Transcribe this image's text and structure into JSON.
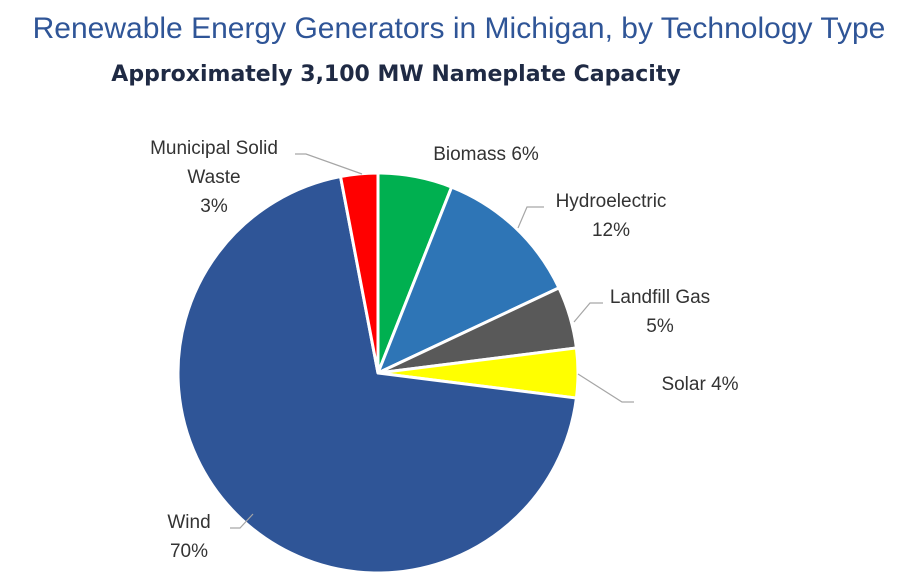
{
  "chart_data": {
    "type": "pie",
    "title": "Renewable Energy Generators in Michigan, by Technology Type",
    "subtitle": "Approximately 3,100 MW Nameplate Capacity",
    "slices": [
      {
        "name": "Biomass",
        "value": 6,
        "label": "Biomass 6%",
        "color": "#00b050"
      },
      {
        "name": "Hydroelectric",
        "value": 12,
        "label": "Hydroelectric 12%",
        "color": "#2e75b6"
      },
      {
        "name": "Landfill Gas",
        "value": 5,
        "label": "Landfill Gas 5%",
        "color": "#595959"
      },
      {
        "name": "Solar",
        "value": 4,
        "label": "Solar 4%",
        "color": "#ffff00"
      },
      {
        "name": "Wind",
        "value": 70,
        "label": "Wind 70%",
        "color": "#2f5597"
      },
      {
        "name": "Municipal Solid Waste",
        "value": 3,
        "label": "Municipal Solid Waste 3%",
        "color": "#ff0000"
      }
    ]
  }
}
